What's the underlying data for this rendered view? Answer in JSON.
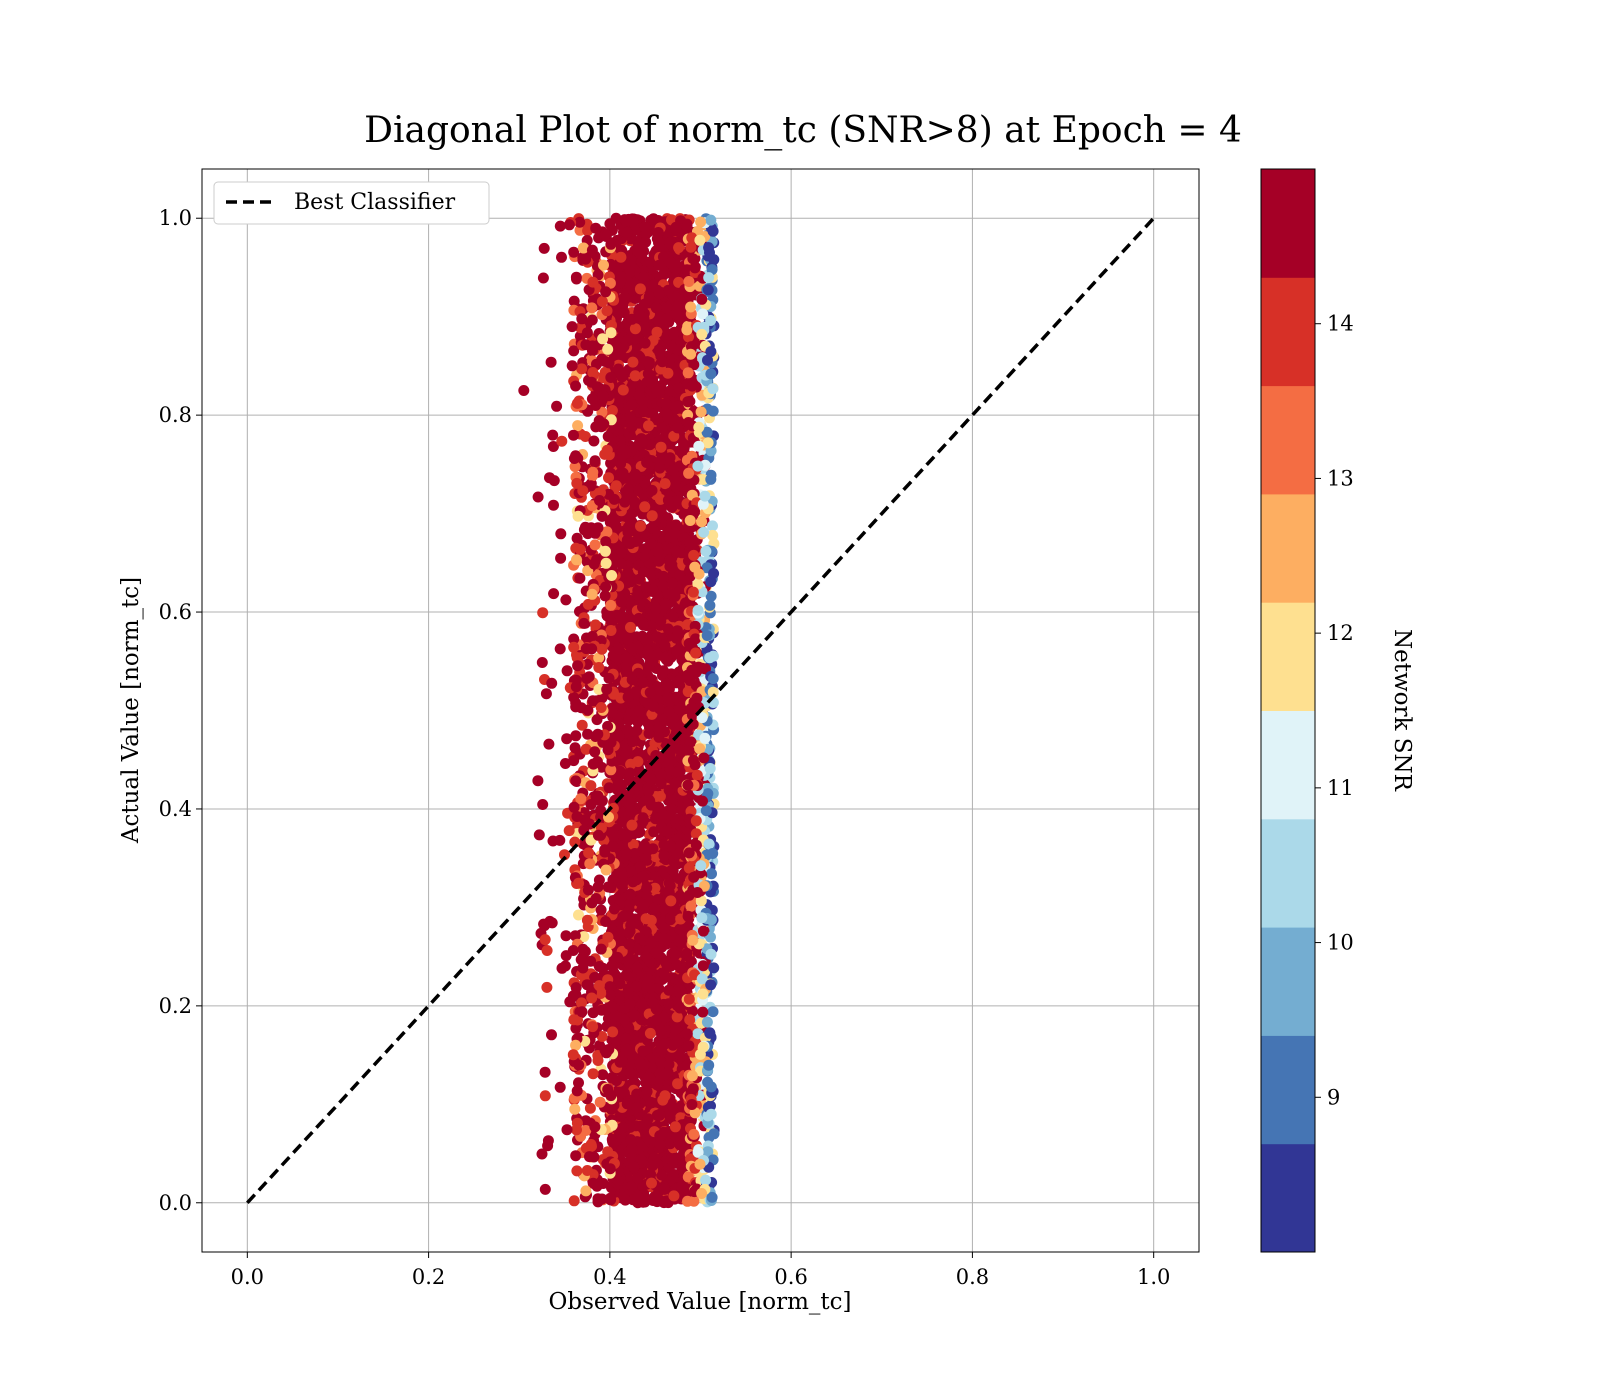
{
  "chart_data": {
    "type": "scatter",
    "title": "Diagonal Plot of norm_tc (SNR>8) at Epoch = 4",
    "xlabel": "Observed Value [norm_tc]",
    "ylabel": "Actual Value [norm_tc]",
    "xlim": [
      -0.05,
      1.05
    ],
    "ylim": [
      -0.05,
      1.05
    ],
    "xticks": [
      "0.0",
      "0.2",
      "0.4",
      "0.6",
      "0.8",
      "1.0"
    ],
    "xtick_values": [
      0.0,
      0.2,
      0.4,
      0.6,
      0.8,
      1.0
    ],
    "yticks": [
      "0.0",
      "0.2",
      "0.4",
      "0.6",
      "0.8",
      "1.0"
    ],
    "ytick_values": [
      0.0,
      0.2,
      0.4,
      0.6,
      0.8,
      1.0
    ],
    "grid": true,
    "legend": {
      "placement": "upper-left",
      "entries": [
        "Best Classifier"
      ]
    },
    "reference_line": {
      "name": "Best Classifier",
      "x": [
        0.0,
        1.0
      ],
      "y": [
        0.0,
        1.0
      ],
      "style": "dashed",
      "color": "#000000"
    },
    "scatter": {
      "x_range": [
        0.3,
        0.52
      ],
      "x_core_range": [
        0.4,
        0.49
      ],
      "y_range": [
        0.0,
        1.0
      ],
      "dominant_color": "#a50026"
    },
    "colorbar": {
      "label": "Network SNR",
      "range": [
        8,
        15
      ],
      "tick_labels": [
        "9",
        "10",
        "11",
        "12",
        "13",
        "14"
      ],
      "tick_values": [
        9,
        10,
        11,
        12,
        13,
        14
      ],
      "bins": [
        8,
        8.7,
        9.4,
        10.1,
        10.8,
        11.5,
        12.2,
        12.9,
        13.6,
        14.3,
        15
      ],
      "colors": [
        "#313695",
        "#4575b4",
        "#74add1",
        "#abd9e9",
        "#e0f3f8",
        "#fee090",
        "#fdae61",
        "#f46d43",
        "#d73027",
        "#a50026"
      ]
    }
  }
}
